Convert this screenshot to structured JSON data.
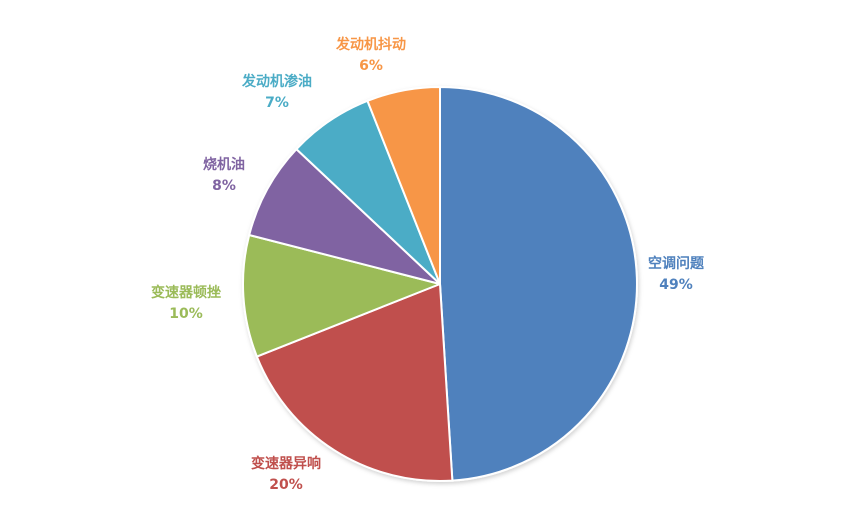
{
  "chart_data": {
    "type": "pie",
    "title": "",
    "slices": [
      {
        "label": "空调问题",
        "value": 49,
        "display": "49%",
        "color": "#4F81BD"
      },
      {
        "label": "变速器异响",
        "value": 20,
        "display": "20%",
        "color": "#C0504D"
      },
      {
        "label": "变速器顿挫",
        "value": 10,
        "display": "10%",
        "color": "#9BBB59"
      },
      {
        "label": "烧机油",
        "value": 8,
        "display": "8%",
        "color": "#8064A2"
      },
      {
        "label": "发动机渗油",
        "value": 7,
        "display": "7%",
        "color": "#4BACC6"
      },
      {
        "label": "发动机抖动",
        "value": 6,
        "display": "6%",
        "color": "#F79646"
      }
    ],
    "start_angle_deg": 0,
    "direction": "clockwise",
    "legend": "none"
  }
}
